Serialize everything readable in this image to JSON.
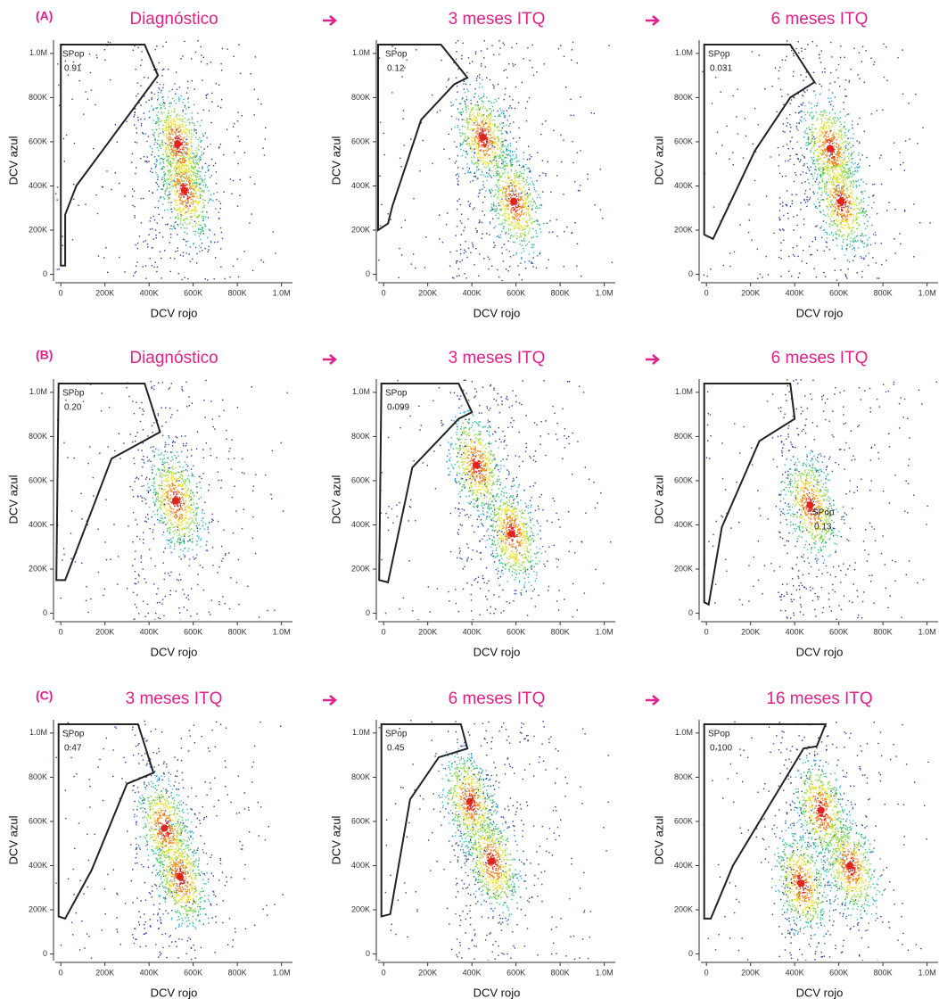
{
  "chart_data": [
    {
      "type": "scatter",
      "panel_label": "(A)",
      "title": "Diagnóstico",
      "xlabel": "DCV rojo",
      "ylabel": "DCV azul",
      "xlim": [
        -25000,
        1050000
      ],
      "ylim": [
        -30000,
        1060000
      ],
      "xticks": [
        0,
        {
          "value": 200000,
          "label": "200K"
        },
        {
          "value": 400000,
          "label": "400K"
        },
        {
          "value": 600000,
          "label": "600K"
        },
        {
          "value": 800000,
          "label": "800K"
        },
        {
          "value": 1000000,
          "label": "1.0M"
        }
      ],
      "yticks": [
        0,
        {
          "value": 200000,
          "label": "200K"
        },
        {
          "value": 400000,
          "label": "400K"
        },
        {
          "value": 600000,
          "label": "600K"
        },
        {
          "value": 800000,
          "label": "800K"
        },
        {
          "value": 1000000,
          "label": "1.0M"
        }
      ],
      "gate_label": "SPop",
      "gate_value": "0.91",
      "gate_x": [
        0,
        380000,
        440000,
        70000,
        20000,
        20000,
        0
      ],
      "gate_y": [
        1040000,
        1040000,
        900000,
        400000,
        270000,
        40000,
        40000
      ],
      "density_peaks": {
        "x": [
          530000,
          560000
        ],
        "y": [
          590000,
          380000
        ]
      }
    },
    {
      "type": "scatter",
      "title": "3 meses ITQ",
      "xlabel": "DCV rojo",
      "ylabel": "DCV azul",
      "xlim": [
        -25000,
        1050000
      ],
      "ylim": [
        -30000,
        1060000
      ],
      "xticks": [
        0,
        {
          "value": 200000,
          "label": "200K"
        },
        {
          "value": 400000,
          "label": "400K"
        },
        {
          "value": 600000,
          "label": "600K"
        },
        {
          "value": 800000,
          "label": "800K"
        },
        {
          "value": 1000000,
          "label": "1.0M"
        }
      ],
      "yticks": [
        0,
        {
          "value": 200000,
          "label": "200K"
        },
        {
          "value": 400000,
          "label": "400K"
        },
        {
          "value": 600000,
          "label": "600K"
        },
        {
          "value": 800000,
          "label": "800K"
        },
        {
          "value": 1000000,
          "label": "1.0M"
        }
      ],
      "gate_label": "SPop",
      "gate_value": "0.12",
      "gate_x": [
        -25000,
        260000,
        380000,
        320000,
        170000,
        40000,
        20000,
        -25000
      ],
      "gate_y": [
        1040000,
        1040000,
        890000,
        860000,
        700000,
        310000,
        230000,
        200000
      ],
      "density_peaks": {
        "x": [
          450000,
          590000
        ],
        "y": [
          620000,
          330000
        ]
      }
    },
    {
      "type": "scatter",
      "title": "6 meses ITQ",
      "xlabel": "DCV rojo",
      "ylabel": "DCV azul",
      "xlim": [
        -25000,
        1050000
      ],
      "ylim": [
        -30000,
        1060000
      ],
      "xticks": [
        0,
        {
          "value": 200000,
          "label": "200K"
        },
        {
          "value": 400000,
          "label": "400K"
        },
        {
          "value": 600000,
          "label": "600K"
        },
        {
          "value": 800000,
          "label": "800K"
        },
        {
          "value": 1000000,
          "label": "1.0M"
        }
      ],
      "yticks": [
        0,
        {
          "value": 200000,
          "label": "200K"
        },
        {
          "value": 400000,
          "label": "400K"
        },
        {
          "value": 600000,
          "label": "600K"
        },
        {
          "value": 800000,
          "label": "800K"
        },
        {
          "value": 1000000,
          "label": "1.0M"
        }
      ],
      "gate_label": "SPop",
      "gate_value": "0.031",
      "gate_x": [
        -10000,
        380000,
        490000,
        380000,
        220000,
        30000,
        -10000
      ],
      "gate_y": [
        1040000,
        1040000,
        870000,
        800000,
        560000,
        160000,
        180000
      ],
      "density_peaks": {
        "x": [
          560000,
          610000
        ],
        "y": [
          570000,
          330000
        ]
      }
    },
    {
      "type": "scatter",
      "panel_label": "(B)",
      "title": "Diagnóstico",
      "xlabel": "DCV rojo",
      "ylabel": "DCV azul",
      "xlim": [
        -25000,
        1050000
      ],
      "ylim": [
        -30000,
        1060000
      ],
      "xticks": [
        0,
        {
          "value": 200000,
          "label": "200K"
        },
        {
          "value": 400000,
          "label": "400K"
        },
        {
          "value": 600000,
          "label": "600K"
        },
        {
          "value": 800000,
          "label": "800K"
        },
        {
          "value": 1000000,
          "label": "1.0M"
        }
      ],
      "yticks": [
        0,
        {
          "value": 200000,
          "label": "200K"
        },
        {
          "value": 400000,
          "label": "400K"
        },
        {
          "value": 600000,
          "label": "600K"
        },
        {
          "value": 800000,
          "label": "800K"
        },
        {
          "value": 1000000,
          "label": "1.0M"
        }
      ],
      "gate_label": "SPop",
      "gate_value": "0.20",
      "gate_x": [
        -10000,
        380000,
        450000,
        230000,
        20000,
        -20000
      ],
      "gate_y": [
        1040000,
        1040000,
        820000,
        700000,
        150000,
        150000
      ],
      "density_peaks": {
        "x": [
          520000
        ],
        "y": [
          510000
        ]
      }
    },
    {
      "type": "scatter",
      "title": "3 meses ITQ",
      "xlabel": "DCV rojo",
      "ylabel": "DCV azul",
      "xlim": [
        -25000,
        1050000
      ],
      "ylim": [
        -30000,
        1060000
      ],
      "xticks": [
        0,
        {
          "value": 200000,
          "label": "200K"
        },
        {
          "value": 400000,
          "label": "400K"
        },
        {
          "value": 600000,
          "label": "600K"
        },
        {
          "value": 800000,
          "label": "800K"
        },
        {
          "value": 1000000,
          "label": "1.0M"
        }
      ],
      "yticks": [
        0,
        {
          "value": 200000,
          "label": "200K"
        },
        {
          "value": 400000,
          "label": "400K"
        },
        {
          "value": 600000,
          "label": "600K"
        },
        {
          "value": 800000,
          "label": "800K"
        },
        {
          "value": 1000000,
          "label": "1.0M"
        }
      ],
      "gate_label": "SPop",
      "gate_value": "0.099",
      "gate_x": [
        -10000,
        340000,
        400000,
        340000,
        130000,
        20000,
        -20000
      ],
      "gate_y": [
        1040000,
        1040000,
        910000,
        880000,
        660000,
        140000,
        150000
      ],
      "density_peaks": {
        "x": [
          420000,
          580000
        ],
        "y": [
          670000,
          360000
        ]
      }
    },
    {
      "type": "scatter",
      "title": "6 meses ITQ",
      "xlabel": "DCV rojo",
      "ylabel": "DCV azul",
      "xlim": [
        -25000,
        1050000
      ],
      "ylim": [
        -30000,
        1060000
      ],
      "xticks": [
        0,
        {
          "value": 200000,
          "label": "200K"
        },
        {
          "value": 400000,
          "label": "400K"
        },
        {
          "value": 600000,
          "label": "600K"
        },
        {
          "value": 800000,
          "label": "800K"
        },
        {
          "value": 1000000,
          "label": "1.0M"
        }
      ],
      "yticks": [
        0,
        {
          "value": 200000,
          "label": "200K"
        },
        {
          "value": 400000,
          "label": "400K"
        },
        {
          "value": 600000,
          "label": "600K"
        },
        {
          "value": 800000,
          "label": "800K"
        },
        {
          "value": 1000000,
          "label": "1.0M"
        }
      ],
      "gate_label": "SPop",
      "gate_value": "0.13",
      "gate_x": [
        -10000,
        380000,
        400000,
        240000,
        70000,
        10000,
        -10000
      ],
      "gate_y": [
        1040000,
        1040000,
        880000,
        780000,
        390000,
        40000,
        50000
      ],
      "density_peaks": {
        "x": [
          470000
        ],
        "y": [
          490000
        ]
      }
    },
    {
      "type": "scatter",
      "panel_label": "(C)",
      "title": "3 meses ITQ",
      "xlabel": "DCV rojo",
      "ylabel": "DCV azul",
      "xlim": [
        -25000,
        1050000
      ],
      "ylim": [
        -30000,
        1060000
      ],
      "xticks": [
        0,
        {
          "value": 200000,
          "label": "200K"
        },
        {
          "value": 400000,
          "label": "400K"
        },
        {
          "value": 600000,
          "label": "600K"
        },
        {
          "value": 800000,
          "label": "800K"
        },
        {
          "value": 1000000,
          "label": "1.0M"
        }
      ],
      "yticks": [
        0,
        {
          "value": 200000,
          "label": "200K"
        },
        {
          "value": 400000,
          "label": "400K"
        },
        {
          "value": 600000,
          "label": "600K"
        },
        {
          "value": 800000,
          "label": "800K"
        },
        {
          "value": 1000000,
          "label": "1.0M"
        }
      ],
      "gate_label": "SPop",
      "gate_value": "0.47",
      "gate_x": [
        -10000,
        350000,
        420000,
        300000,
        140000,
        20000,
        -10000
      ],
      "gate_y": [
        1040000,
        1040000,
        820000,
        770000,
        380000,
        160000,
        170000
      ],
      "density_peaks": {
        "x": [
          470000,
          540000
        ],
        "y": [
          570000,
          350000
        ]
      }
    },
    {
      "type": "scatter",
      "title": "6 meses ITQ",
      "xlabel": "DCV rojo",
      "ylabel": "DCV azul",
      "xlim": [
        -25000,
        1050000
      ],
      "ylim": [
        -30000,
        1060000
      ],
      "xticks": [
        0,
        {
          "value": 200000,
          "label": "200K"
        },
        {
          "value": 400000,
          "label": "400K"
        },
        {
          "value": 600000,
          "label": "600K"
        },
        {
          "value": 800000,
          "label": "800K"
        },
        {
          "value": 1000000,
          "label": "1.0M"
        }
      ],
      "yticks": [
        0,
        {
          "value": 200000,
          "label": "200K"
        },
        {
          "value": 400000,
          "label": "400K"
        },
        {
          "value": 600000,
          "label": "600K"
        },
        {
          "value": 800000,
          "label": "800K"
        },
        {
          "value": 1000000,
          "label": "1.0M"
        }
      ],
      "gate_label": "SPop",
      "gate_value": "0.45",
      "gate_x": [
        -10000,
        350000,
        380000,
        250000,
        120000,
        30000,
        -10000
      ],
      "gate_y": [
        1040000,
        1040000,
        930000,
        890000,
        700000,
        180000,
        170000
      ],
      "density_peaks": {
        "x": [
          390000,
          490000
        ],
        "y": [
          690000,
          420000
        ]
      }
    },
    {
      "type": "scatter",
      "title": "16 meses ITQ",
      "xlabel": "DCV rojo",
      "ylabel": "DCV azul",
      "xlim": [
        -25000,
        1050000
      ],
      "ylim": [
        -30000,
        1060000
      ],
      "xticks": [
        0,
        {
          "value": 200000,
          "label": "200K"
        },
        {
          "value": 400000,
          "label": "400K"
        },
        {
          "value": 600000,
          "label": "600K"
        },
        {
          "value": 800000,
          "label": "800K"
        },
        {
          "value": 1000000,
          "label": "1.0M"
        }
      ],
      "yticks": [
        0,
        {
          "value": 200000,
          "label": "200K"
        },
        {
          "value": 400000,
          "label": "400K"
        },
        {
          "value": 600000,
          "label": "600K"
        },
        {
          "value": 800000,
          "label": "800K"
        },
        {
          "value": 1000000,
          "label": "1.0M"
        }
      ],
      "gate_label": "SPop",
      "gate_value": "0.100",
      "gate_x": [
        -10000,
        540000,
        500000,
        440000,
        120000,
        20000,
        -10000
      ],
      "gate_y": [
        1040000,
        1040000,
        940000,
        930000,
        400000,
        160000,
        160000
      ],
      "density_peaks": {
        "x": [
          650000,
          430000,
          520000
        ],
        "y": [
          400000,
          320000,
          650000
        ]
      }
    }
  ]
}
